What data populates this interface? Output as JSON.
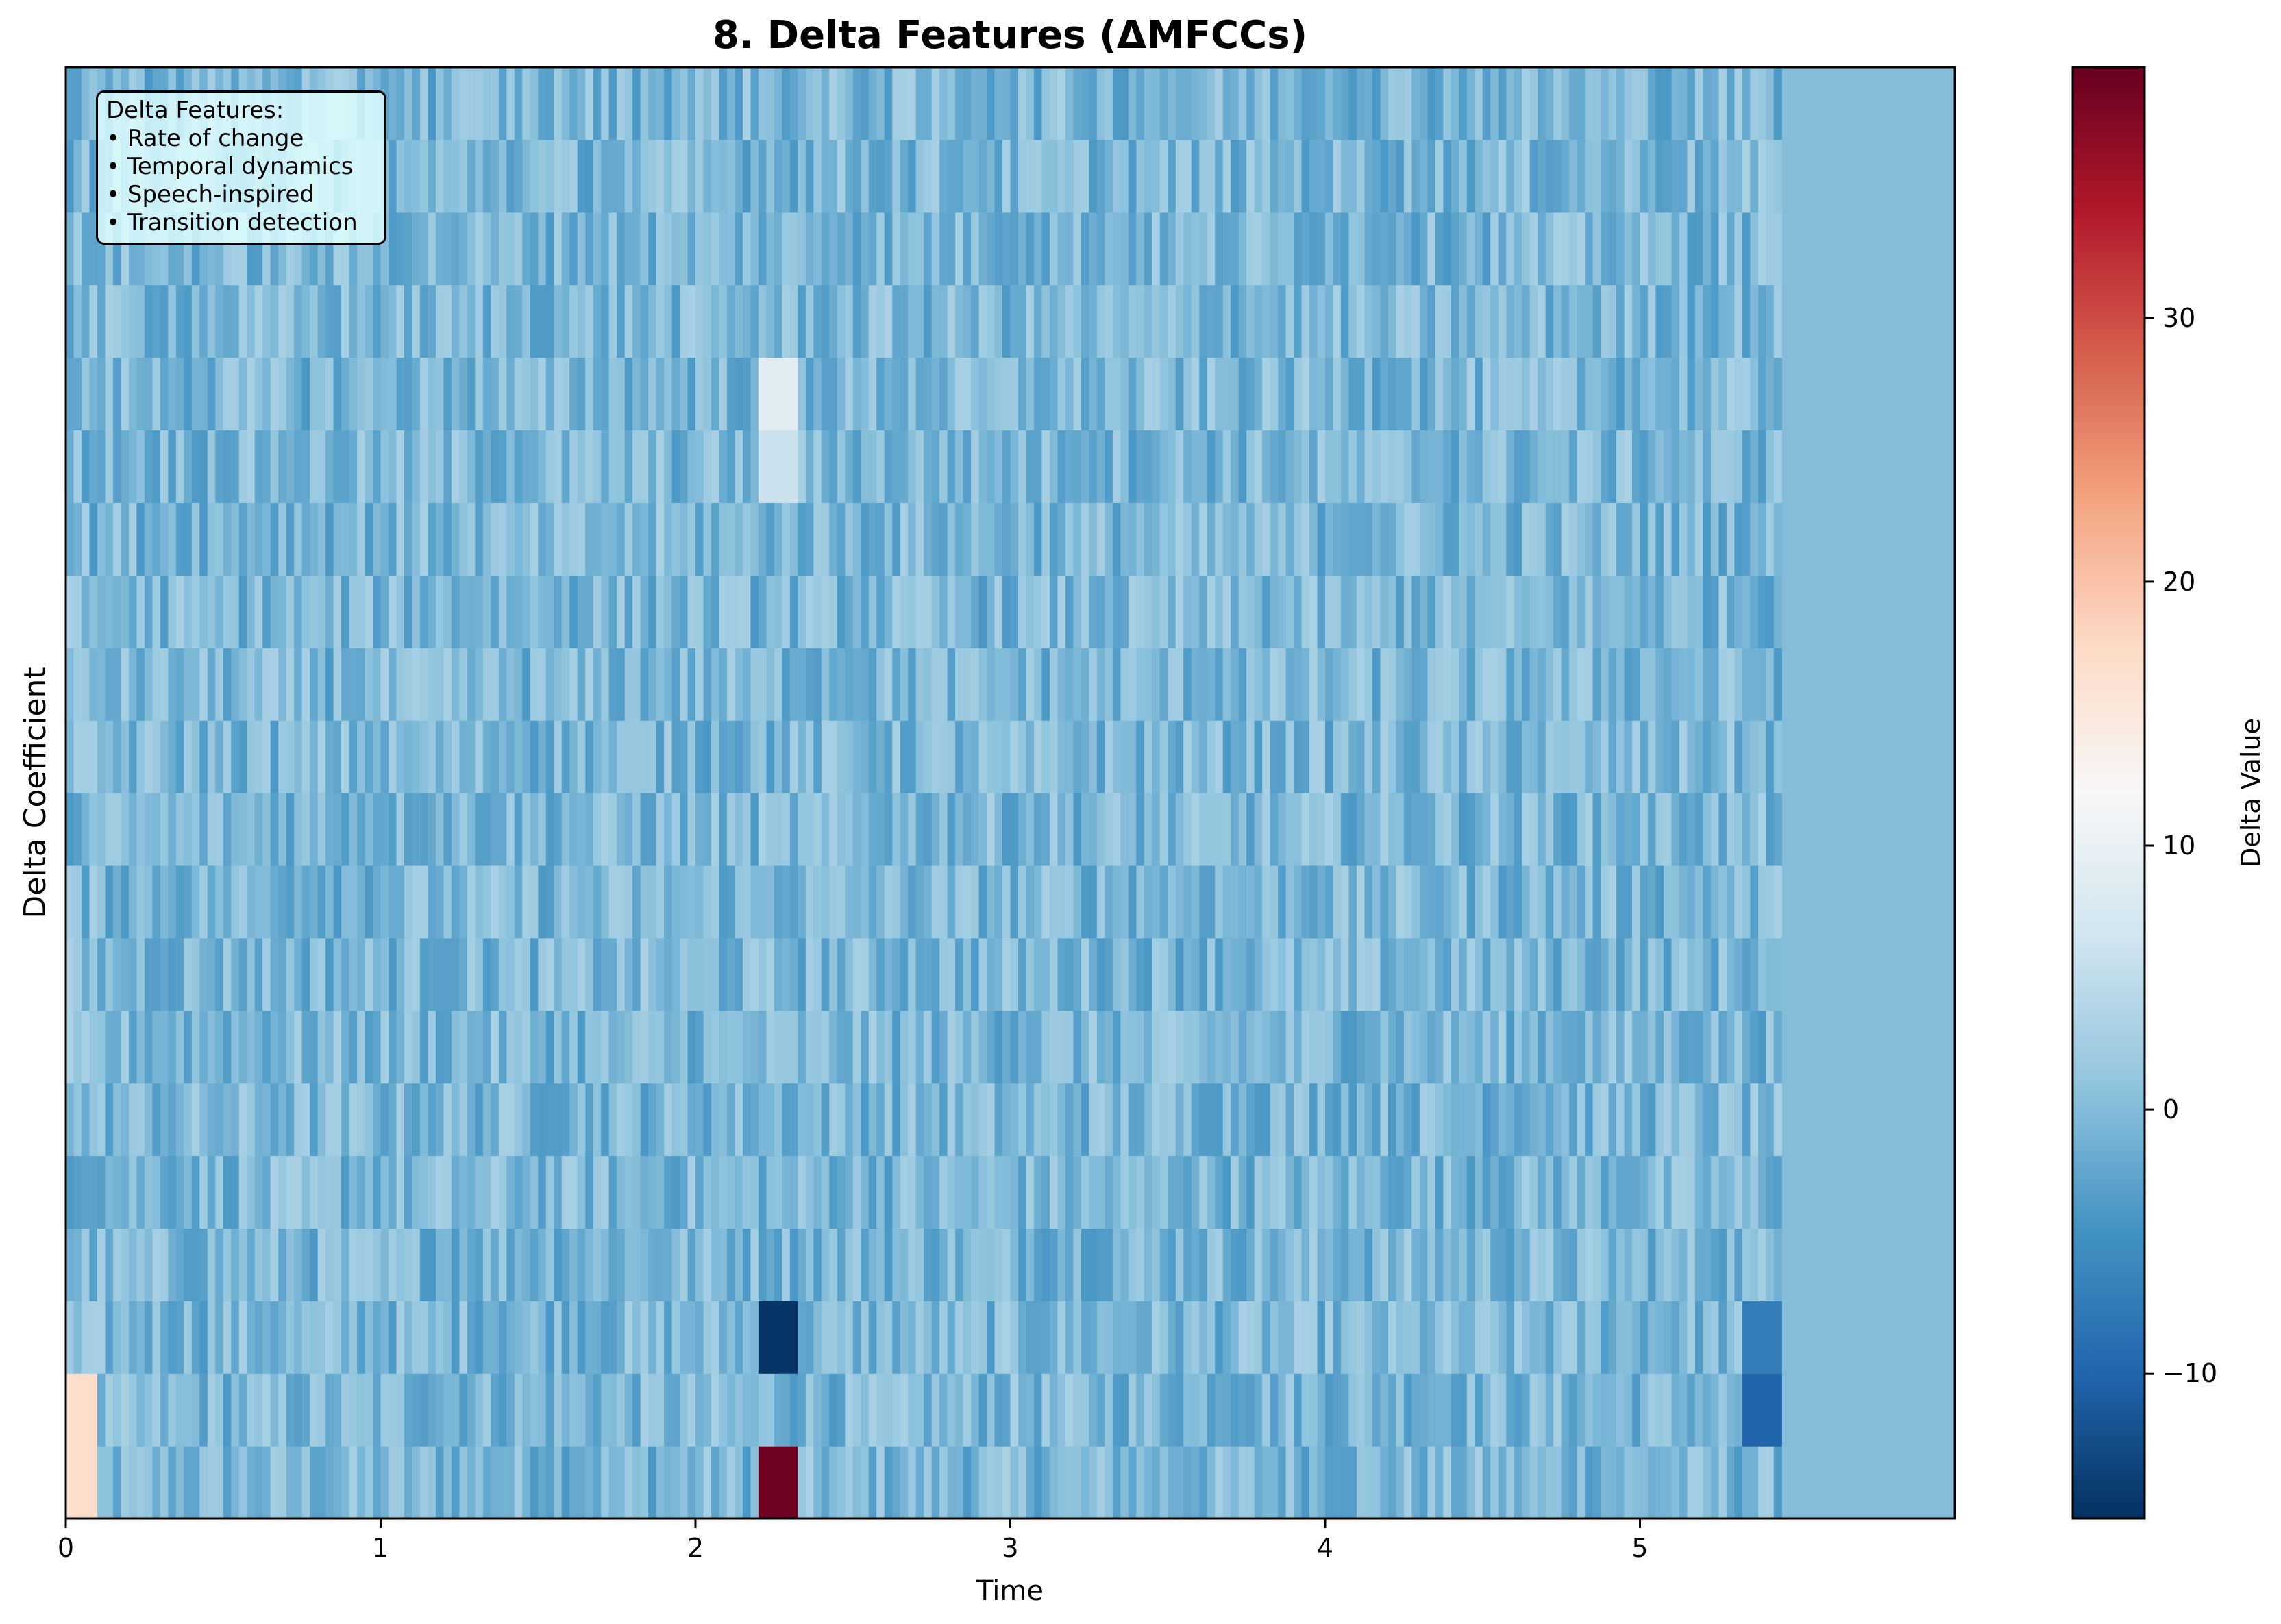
{
  "chart_data": {
    "type": "heatmap",
    "title": "8. Delta Features (ΔMFCCs)",
    "xlabel": "Time",
    "ylabel": "Delta Coefficient",
    "xlim": [
      0,
      6
    ],
    "x_ticks": [
      0,
      1,
      2,
      3,
      4,
      5
    ],
    "x_tick_labels": [
      "0",
      "1",
      "2",
      "3",
      "4",
      "5"
    ],
    "n_coefficients": 20,
    "signal_end_time": 5.45,
    "colorbar": {
      "label": "Delta Value",
      "colormap": "RdBu_r",
      "vmin": -15.5,
      "vmax": 39.5,
      "ticks": [
        -10,
        0,
        10,
        20,
        30
      ],
      "tick_labels": [
        "−10",
        "0",
        "10",
        "20",
        "30"
      ]
    },
    "notable_values": [
      {
        "coefficient": 0,
        "time_start": 2.22,
        "time_end": 2.32,
        "value": 39
      },
      {
        "coefficient": 0,
        "time_start": 0.0,
        "time_end": 0.1,
        "value": 17
      },
      {
        "coefficient": 1,
        "time_start": 0.0,
        "time_end": 0.1,
        "value": 17
      },
      {
        "coefficient": 2,
        "time_start": 2.22,
        "time_end": 2.32,
        "value": -15
      },
      {
        "coefficient": 15,
        "time_start": 2.22,
        "time_end": 2.32,
        "value": 9
      },
      {
        "coefficient": 14,
        "time_start": 2.22,
        "time_end": 2.32,
        "value": 6
      },
      {
        "coefficient": 1,
        "time_start": 5.35,
        "time_end": 5.45,
        "value": -10
      },
      {
        "coefficient": 2,
        "time_start": 5.35,
        "time_end": 5.45,
        "value": -7
      }
    ],
    "baseline_value": 0,
    "colors": {
      "dark_red": "#67001f",
      "red": "#b2182b",
      "light_red": "#f4a582",
      "white": "#f7f7f7",
      "light_blue": "#92c5de",
      "blue": "#4393c3",
      "dark_blue": "#053061"
    }
  },
  "legend": {
    "lines": [
      "Delta Features:",
      "• Rate of change",
      "• Temporal dynamics",
      "• Speech-inspired",
      "• Transition detection"
    ]
  }
}
